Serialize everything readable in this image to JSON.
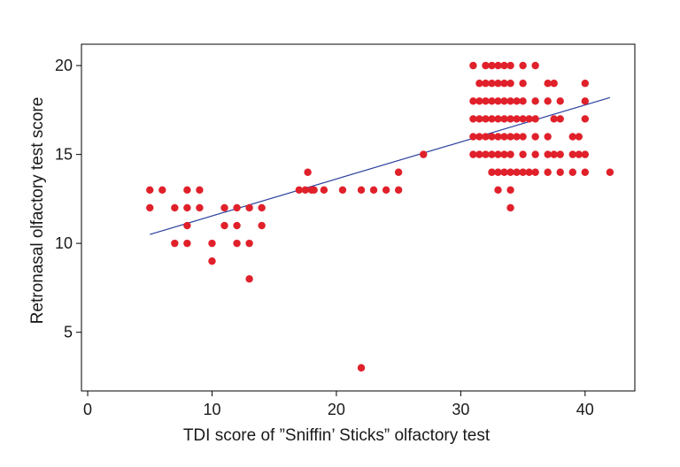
{
  "chart_data": {
    "type": "scatter",
    "title": "",
    "xlabel": "TDI score of ”Sniffin’ Sticks” olfactory test",
    "ylabel": "Retronasal olfactory test score",
    "xlim": [
      -0.5,
      44
    ],
    "ylim": [
      1.7,
      21.2
    ],
    "xticks": [
      0,
      10,
      20,
      30,
      40
    ],
    "yticks": [
      5,
      10,
      15,
      20
    ],
    "grid": false,
    "legend": "none",
    "point_color": "#e0202a",
    "line_color": "#2b3f9e",
    "fit_line": {
      "x": [
        5,
        42
      ],
      "y": [
        10.5,
        18.2
      ]
    },
    "points": [
      [
        5,
        13
      ],
      [
        5,
        12
      ],
      [
        6,
        13
      ],
      [
        7,
        12
      ],
      [
        7,
        10
      ],
      [
        8,
        13
      ],
      [
        8,
        12
      ],
      [
        8,
        11
      ],
      [
        8,
        10
      ],
      [
        9,
        13
      ],
      [
        9,
        12
      ],
      [
        10,
        10
      ],
      [
        10,
        9
      ],
      [
        11,
        12
      ],
      [
        11,
        11
      ],
      [
        12,
        12
      ],
      [
        12,
        11
      ],
      [
        12,
        10
      ],
      [
        13,
        12
      ],
      [
        13,
        10
      ],
      [
        13,
        8
      ],
      [
        14,
        12
      ],
      [
        14,
        11
      ],
      [
        17,
        13
      ],
      [
        17.5,
        13
      ],
      [
        18,
        13
      ],
      [
        17.7,
        14
      ],
      [
        18.2,
        13
      ],
      [
        19,
        13
      ],
      [
        20.5,
        13
      ],
      [
        22,
        13
      ],
      [
        23,
        13
      ],
      [
        24,
        13
      ],
      [
        25,
        13
      ],
      [
        25,
        14
      ],
      [
        22,
        3
      ],
      [
        27,
        15
      ],
      [
        31,
        20
      ],
      [
        31,
        18
      ],
      [
        31,
        17
      ],
      [
        31,
        16
      ],
      [
        31,
        15
      ],
      [
        31.5,
        19
      ],
      [
        31.5,
        18
      ],
      [
        31.5,
        17
      ],
      [
        31.5,
        16
      ],
      [
        31.5,
        15
      ],
      [
        32,
        20
      ],
      [
        32,
        19
      ],
      [
        32,
        18
      ],
      [
        32,
        17
      ],
      [
        32,
        16
      ],
      [
        32,
        15
      ],
      [
        32.5,
        20
      ],
      [
        32.5,
        19
      ],
      [
        32.5,
        18
      ],
      [
        32.5,
        17
      ],
      [
        32.5,
        16
      ],
      [
        32.5,
        15
      ],
      [
        32.5,
        14
      ],
      [
        33,
        20
      ],
      [
        33,
        19
      ],
      [
        33,
        18
      ],
      [
        33,
        17
      ],
      [
        33,
        16
      ],
      [
        33,
        15
      ],
      [
        33,
        14
      ],
      [
        33,
        13
      ],
      [
        33.5,
        20
      ],
      [
        33.5,
        19
      ],
      [
        33.5,
        18
      ],
      [
        33.5,
        17
      ],
      [
        33.5,
        16
      ],
      [
        33.5,
        15
      ],
      [
        33.5,
        14
      ],
      [
        34,
        20
      ],
      [
        34,
        19
      ],
      [
        34,
        18
      ],
      [
        34,
        17
      ],
      [
        34,
        16
      ],
      [
        34,
        15
      ],
      [
        34,
        14
      ],
      [
        34,
        13
      ],
      [
        34,
        12
      ],
      [
        34.5,
        18
      ],
      [
        34.5,
        17
      ],
      [
        34.5,
        16
      ],
      [
        34.5,
        14
      ],
      [
        35,
        20
      ],
      [
        35,
        19
      ],
      [
        35,
        18
      ],
      [
        35,
        17
      ],
      [
        35,
        16
      ],
      [
        35,
        15
      ],
      [
        35,
        14
      ],
      [
        35.5,
        17
      ],
      [
        35.5,
        14
      ],
      [
        36,
        20
      ],
      [
        36,
        18
      ],
      [
        36,
        17
      ],
      [
        36,
        16
      ],
      [
        36,
        15
      ],
      [
        36,
        14
      ],
      [
        37,
        19
      ],
      [
        37,
        18
      ],
      [
        37,
        16
      ],
      [
        37,
        15
      ],
      [
        37,
        14
      ],
      [
        37.5,
        19
      ],
      [
        37.5,
        17
      ],
      [
        37.5,
        15
      ],
      [
        38,
        18
      ],
      [
        38,
        17
      ],
      [
        38,
        15
      ],
      [
        38,
        14
      ],
      [
        39,
        16
      ],
      [
        39,
        15
      ],
      [
        39,
        14
      ],
      [
        39.5,
        16
      ],
      [
        39.5,
        15
      ],
      [
        40,
        19
      ],
      [
        40,
        18
      ],
      [
        40,
        17
      ],
      [
        40,
        15
      ],
      [
        40,
        14
      ],
      [
        42,
        14
      ]
    ]
  }
}
